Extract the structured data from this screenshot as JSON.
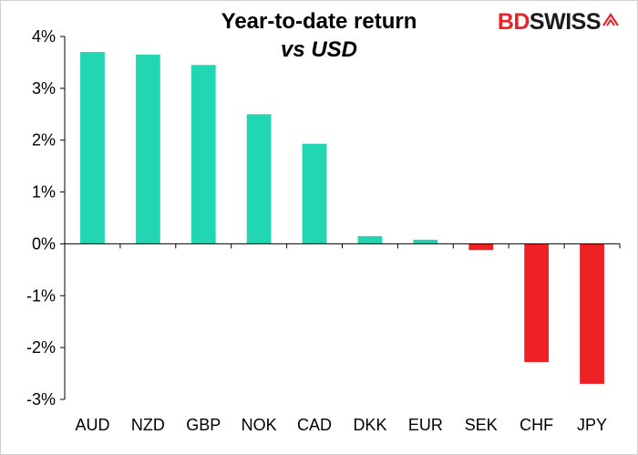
{
  "logo": {
    "bd": "BD",
    "swiss": "SWISS"
  },
  "colors": {
    "positive": "#22d6b3",
    "negative": "#ee2124",
    "axis": "#000000"
  },
  "chart_data": {
    "type": "bar",
    "title": "Year-to-date return",
    "subtitle": "vs USD",
    "categories": [
      "AUD",
      "NZD",
      "GBP",
      "NOK",
      "CAD",
      "DKK",
      "EUR",
      "SEK",
      "CHF",
      "JPY"
    ],
    "values": [
      3.7,
      3.65,
      3.45,
      2.5,
      1.93,
      0.15,
      0.08,
      -0.12,
      -2.28,
      -2.7
    ],
    "ylim": [
      -3,
      4
    ],
    "yticks": [
      4,
      3,
      2,
      1,
      0,
      -1,
      -2,
      -3
    ],
    "ytick_labels": [
      "4%",
      "3%",
      "2%",
      "1%",
      "0%",
      "-1%",
      "-2%",
      "-3%"
    ],
    "grid": false,
    "legend": "none"
  }
}
